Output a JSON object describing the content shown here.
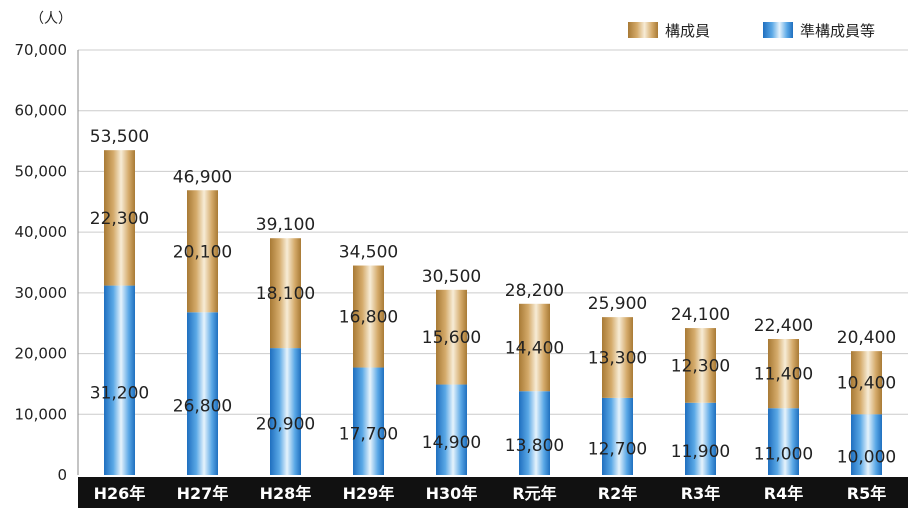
{
  "chart_data": {
    "type": "bar",
    "stacked": true,
    "unit": "（人）",
    "categories": [
      "H26年",
      "H27年",
      "H28年",
      "H29年",
      "H30年",
      "R元年",
      "R2年",
      "R3年",
      "R4年",
      "R5年"
    ],
    "series": [
      {
        "name": "準構成員等",
        "values": [
          31200,
          26800,
          20900,
          17700,
          14900,
          13800,
          12700,
          11900,
          11000,
          10000
        ]
      },
      {
        "name": "構成員",
        "values": [
          22300,
          20100,
          18100,
          16800,
          15600,
          14400,
          13300,
          12300,
          11400,
          10400
        ]
      }
    ],
    "totals": [
      53500,
      46900,
      39100,
      34500,
      30500,
      28200,
      25900,
      24100,
      22400,
      20400
    ],
    "ylim": [
      0,
      70000
    ],
    "yticks": [
      0,
      10000,
      20000,
      30000,
      40000,
      50000,
      60000,
      70000
    ],
    "ytick_labels": [
      "0",
      "10,000",
      "20,000",
      "30,000",
      "40,000",
      "50,000",
      "60,000",
      "70,000"
    ],
    "grid": true,
    "legend": "top-right",
    "colors": {
      "準構成員等": "#3d8fd3",
      "構成員": "#c49a55",
      "category_band": "#111111",
      "grid": "#cccccc"
    }
  }
}
